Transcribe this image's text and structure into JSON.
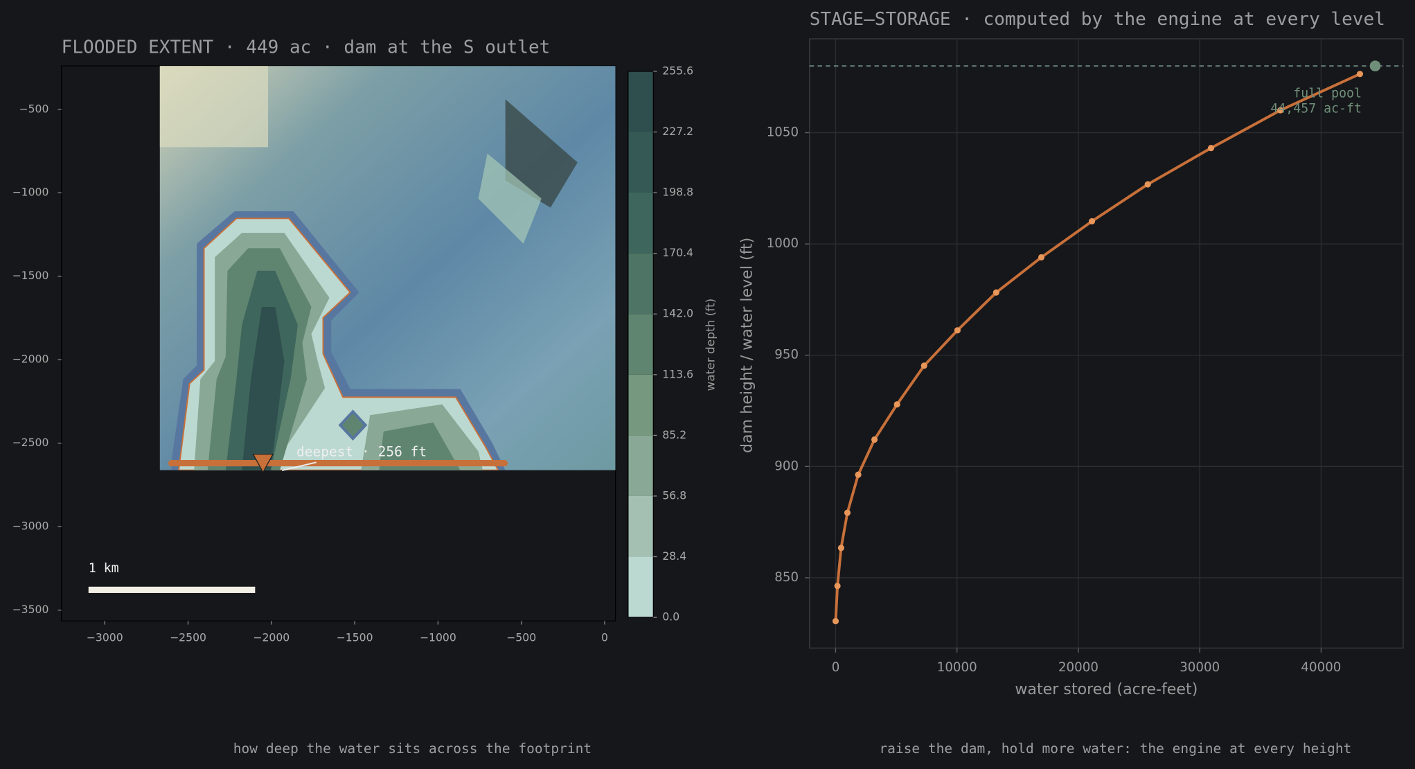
{
  "chart_data": [
    {
      "type": "map",
      "title": "FLOODED EXTENT · 449 ac · dam at the S outlet",
      "caption": "how deep the water sits across the footprint",
      "xlim": [
        -3260,
        65
      ],
      "ylim": [
        -3565,
        -240
      ],
      "xticks": [
        {
          "value": -3000,
          "label": "−3000"
        },
        {
          "value": -2500,
          "label": "−2500"
        },
        {
          "value": -2000,
          "label": "−2000"
        },
        {
          "value": -1500,
          "label": "−1500"
        },
        {
          "value": -1000,
          "label": "−1000"
        },
        {
          "value": -500,
          "label": "−500"
        },
        0
      ],
      "yticks": [
        {
          "value": -500,
          "label": "−500"
        },
        {
          "value": -1000,
          "label": "−1000"
        },
        {
          "value": -1500,
          "label": "−1500"
        },
        {
          "value": -2000,
          "label": "−2000"
        },
        {
          "value": -2500,
          "label": "−2500"
        },
        {
          "value": -3000,
          "label": "−3000"
        },
        {
          "value": -3500,
          "label": "−3500"
        }
      ],
      "dam": {
        "x": [
          -2600,
          -600
        ],
        "y": -2620,
        "color": "#c8703a"
      },
      "deepest": {
        "x": -2050,
        "y": -2620,
        "label": "deepest · 256 ft"
      },
      "scalebar": {
        "label": "1 km",
        "length": 1000
      },
      "colorbar": {
        "label": "water depth (ft)",
        "lim": [
          0,
          255.6
        ],
        "ticks": [
          {
            "value": 0,
            "label": "0.0"
          },
          28.4,
          56.8,
          85.2,
          113.6,
          {
            "value": 142,
            "label": "142.0"
          },
          170.4,
          198.8,
          227.2,
          255.6
        ],
        "colors": [
          "#bcd9d1",
          "#a3c0b3",
          "#8aa896",
          "#76987f",
          "#5f8570",
          "#4d7465",
          "#3f665c",
          "#355a55",
          "#2e4f4d"
        ]
      }
    },
    {
      "type": "line",
      "title": "STAGE–STORAGE · computed by the engine at every level",
      "caption": "raise the dam, hold more water: the engine at every height",
      "xlabel": "water stored (acre-feet)",
      "ylabel": "dam height / water level (ft)",
      "xlim": [
        -2156,
        46765
      ],
      "ylim": [
        818.4,
        1092.2
      ],
      "xticks": [
        0,
        10000,
        20000,
        30000,
        40000
      ],
      "yticks": [
        850,
        900,
        950,
        1000,
        1050
      ],
      "grid": true,
      "series": [
        {
          "name": "stage-storage",
          "color": "#c8703a",
          "x": [
            0,
            150,
            450,
            970,
            1860,
            3200,
            5060,
            7290,
            10040,
            13230,
            16950,
            21120,
            25720,
            30930,
            36650,
            43200
          ],
          "values": [
            830.5,
            846.3,
            863.4,
            879.2,
            896.3,
            912.1,
            927.9,
            945.3,
            961.2,
            978.2,
            994.0,
            1010.2,
            1026.8,
            1043.1,
            1060.1,
            1076.4
          ]
        }
      ],
      "full_pool": {
        "x": 44457,
        "y": 1080,
        "color": "#6f8f7a",
        "label": [
          "full pool",
          "44,457 ac-ft"
        ]
      }
    }
  ]
}
